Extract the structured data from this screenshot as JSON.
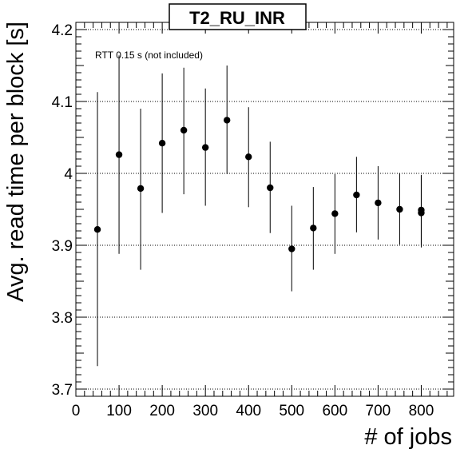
{
  "chart_data": {
    "type": "scatter",
    "title": "T2_RU_INR",
    "xlabel": "# of jobs",
    "ylabel": "Avg. read time per block [s]",
    "annotation": "RTT 0.15 s (not included)",
    "xlim": [
      0,
      875
    ],
    "ylim": [
      3.69,
      4.21
    ],
    "xticks": [
      0,
      100,
      200,
      300,
      400,
      500,
      600,
      700,
      800
    ],
    "xtick_labels": [
      "0",
      "100",
      "200",
      "300",
      "400",
      "500",
      "600",
      "700",
      "800"
    ],
    "yticks": [
      3.7,
      3.8,
      3.9,
      4.0,
      4.1,
      4.2
    ],
    "ytick_labels": [
      "3.7",
      "3.8",
      "3.9",
      "4",
      "4.1",
      "4.2"
    ],
    "grid": "horizontal dotted",
    "legend": "none",
    "marker_color": "#000000",
    "series": [
      {
        "points": [
          {
            "x": 50,
            "y": 3.922,
            "err_low": 3.732,
            "err_high": 4.113
          },
          {
            "x": 100,
            "y": 4.026,
            "err_low": 3.888,
            "err_high": 4.164
          },
          {
            "x": 150,
            "y": 3.979,
            "err_low": 3.866,
            "err_high": 4.09
          },
          {
            "x": 200,
            "y": 4.042,
            "err_low": 3.945,
            "err_high": 4.139
          },
          {
            "x": 250,
            "y": 4.06,
            "err_low": 3.971,
            "err_high": 4.147
          },
          {
            "x": 300,
            "y": 4.036,
            "err_low": 3.955,
            "err_high": 4.118
          },
          {
            "x": 350,
            "y": 4.074,
            "err_low": 3.999,
            "err_high": 4.15
          },
          {
            "x": 400,
            "y": 4.023,
            "err_low": 3.953,
            "err_high": 4.092
          },
          {
            "x": 450,
            "y": 3.98,
            "err_low": 3.917,
            "err_high": 4.044
          },
          {
            "x": 500,
            "y": 3.895,
            "err_low": 3.836,
            "err_high": 3.955
          },
          {
            "x": 550,
            "y": 3.924,
            "err_low": 3.866,
            "err_high": 3.981
          },
          {
            "x": 600,
            "y": 3.944,
            "err_low": 3.888,
            "err_high": 3.999
          },
          {
            "x": 650,
            "y": 3.97,
            "err_low": 3.918,
            "err_high": 4.023
          },
          {
            "x": 700,
            "y": 3.959,
            "err_low": 3.908,
            "err_high": 4.01
          },
          {
            "x": 750,
            "y": 3.95,
            "err_low": 3.901,
            "err_high": 4.0
          },
          {
            "x": 800,
            "y": 3.945,
            "err_low": 3.897,
            "err_high": 3.997
          },
          {
            "x": 800,
            "y": 3.949,
            "err_low": 3.9,
            "err_high": 3.998
          }
        ]
      }
    ]
  }
}
